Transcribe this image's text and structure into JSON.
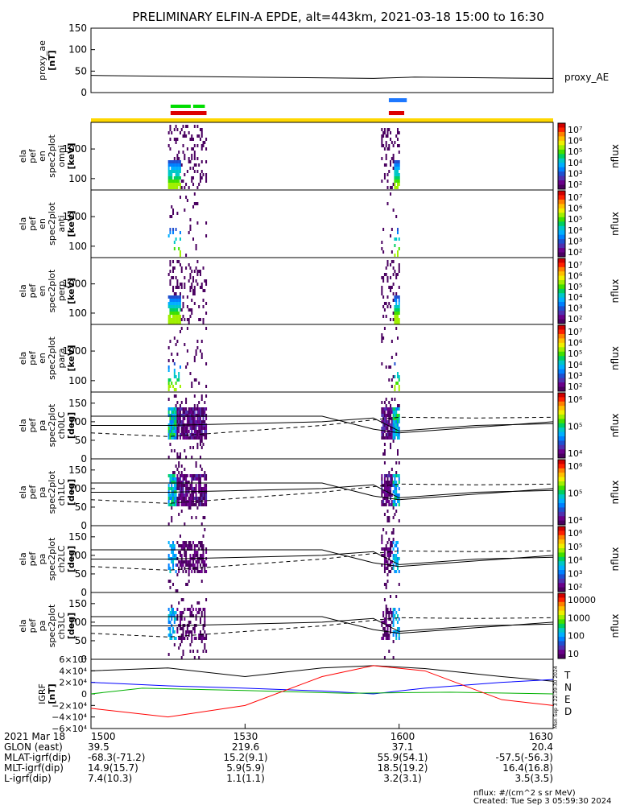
{
  "title": "PRELIMINARY ELFIN-A EPDE, alt=443km, 2021-03-18 15:00 to 16:30",
  "colors": {
    "spectro": [
      "#ffffff",
      "#4a0060",
      "#6a008a",
      "#5030b0",
      "#2050d0",
      "#0080ff",
      "#00b0ff",
      "#00c8c8",
      "#00d060",
      "#40e000",
      "#a0f000",
      "#f0f000",
      "#ffc000",
      "#ff8000",
      "#ff2000",
      "#d00000"
    ],
    "N": "#0000ff",
    "E": "#00b000",
    "D": "#ff0000",
    "T": "#000000",
    "bar_yellow": "#ffd700",
    "bar_red": "#dd0000",
    "bar_green": "#00dd00",
    "bar_blue": "#1e78ff"
  },
  "colorbar_ticks": {
    "en": [
      "10⁷",
      "10⁶",
      "10⁵",
      "10⁴",
      "10³",
      "10²"
    ],
    "lc01": [
      "10⁶",
      "10⁵",
      "10⁴"
    ],
    "lc2": [
      "10⁶",
      "10⁵",
      "10⁴",
      "10³",
      "10²"
    ],
    "lc3": [
      "10000",
      "1000",
      "100",
      "10"
    ],
    "unit": "nflux"
  },
  "sections": {
    "ae_label": "proxy_AE",
    "igrf_letters": [
      "T",
      "N",
      "E",
      "D"
    ],
    "footnote1": "nflux: #/(cm^2 s sr MeV)",
    "footnote2": "Created: Tue Sep  3 05:59:30 2024",
    "stamp": "Mon Sep  3 22:39:30 2024"
  },
  "chart_data": {
    "type": "line",
    "panels": [
      {
        "ylabel": [
          "proxy_ae",
          "[nT]"
        ],
        "ylim": [
          0,
          150
        ],
        "yticks": [
          "150",
          "100",
          "50",
          "0"
        ],
        "series": [
          {
            "name": "proxy_AE",
            "x": [
              "15:00",
              "15:15",
              "15:30",
              "15:40",
              "15:55",
              "16:03",
              "16:20",
              "16:30"
            ],
            "values": [
              40,
              38,
              36,
              35,
              33,
              36,
              34,
              33
            ]
          }
        ]
      },
      {
        "ylabel": [
          "ela",
          "pef",
          "en",
          "spec2plot",
          "omni",
          "[keV]"
        ],
        "ylim": [
          60,
          7000
        ],
        "scale": "log",
        "yticks": [
          "1000",
          "100"
        ],
        "cbar": "en",
        "bursts": [
          {
            "start": "15:12",
            "end": "15:18"
          },
          {
            "start": "15:57",
            "end": "15:59"
          }
        ]
      },
      {
        "ylabel": [
          "ela",
          "pef",
          "en",
          "spec2plot",
          "anti",
          "[keV]"
        ],
        "ylim": [
          60,
          7000
        ],
        "scale": "log",
        "yticks": [
          "1000",
          "100"
        ],
        "cbar": "en"
      },
      {
        "ylabel": [
          "ela",
          "pef",
          "en",
          "spec2plot",
          "perp",
          "[keV]"
        ],
        "ylim": [
          60,
          7000
        ],
        "scale": "log",
        "yticks": [
          "1000",
          "100"
        ],
        "cbar": "en"
      },
      {
        "ylabel": [
          "ela",
          "pef",
          "en",
          "spec2plot",
          "para",
          "[keV]"
        ],
        "ylim": [
          60,
          7000
        ],
        "scale": "log",
        "yticks": [
          "1000",
          "100"
        ],
        "cbar": "en"
      },
      {
        "ylabel": [
          "ela",
          "pef",
          "pa",
          "spec2plot",
          "ch0LC",
          "[deg]"
        ],
        "ylim": [
          0,
          180
        ],
        "yticks": [
          "150",
          "100",
          "50",
          "0"
        ],
        "cbar": "lc01"
      },
      {
        "ylabel": [
          "ela",
          "pef",
          "pa",
          "spec2plot",
          "ch1LC",
          "[deg]"
        ],
        "ylim": [
          0,
          180
        ],
        "yticks": [
          "150",
          "100",
          "50",
          "0"
        ],
        "cbar": "lc01"
      },
      {
        "ylabel": [
          "ela",
          "pef",
          "pa",
          "spec2plot",
          "ch2LC",
          "[deg]"
        ],
        "ylim": [
          0,
          180
        ],
        "yticks": [
          "150",
          "100",
          "50",
          "0"
        ],
        "cbar": "lc2"
      },
      {
        "ylabel": [
          "ela",
          "pef",
          "pa",
          "spec2plot",
          "ch3LC",
          "[deg]"
        ],
        "ylim": [
          0,
          180
        ],
        "yticks": [
          "150",
          "100",
          "50",
          "0"
        ],
        "cbar": "lc3"
      },
      {
        "ylabel": [
          "IGRF",
          "[nT]"
        ],
        "ylim": [
          -60000,
          60000
        ],
        "yticks": [
          "6×10⁴",
          "4×10⁴",
          "2×10⁴",
          "0",
          "−2×10⁴",
          "−4×10⁴",
          "−6×10⁴"
        ],
        "series": [
          {
            "name": "T",
            "x": [
              "15:00",
              "15:15",
              "15:30",
              "15:45",
              "15:55",
              "16:05",
              "16:20",
              "16:30"
            ],
            "values": [
              40000,
              45000,
              30000,
              45000,
              49000,
              44000,
              30000,
              22000
            ]
          },
          {
            "name": "N",
            "x": [
              "15:00",
              "15:15",
              "15:30",
              "15:45",
              "15:55",
              "16:05",
              "16:20",
              "16:30"
            ],
            "values": [
              20000,
              14000,
              10000,
              5000,
              0,
              10000,
              20000,
              25000
            ]
          },
          {
            "name": "E",
            "x": [
              "15:00",
              "15:10",
              "15:30",
              "15:50",
              "16:10",
              "16:30"
            ],
            "values": [
              0,
              10000,
              6000,
              1000,
              3000,
              0
            ]
          },
          {
            "name": "D",
            "x": [
              "15:00",
              "15:15",
              "15:30",
              "15:45",
              "15:55",
              "16:05",
              "16:20",
              "16:30"
            ],
            "values": [
              -25000,
              -40000,
              -20000,
              30000,
              49000,
              40000,
              -10000,
              -20000
            ]
          }
        ]
      }
    ],
    "pa_lines": {
      "solid_a": [
        115,
        115,
        115,
        115,
        80,
        70,
        85,
        100
      ],
      "solid_b": [
        90,
        90,
        95,
        100,
        110,
        75,
        90,
        95
      ],
      "dashed": [
        70,
        60,
        75,
        90,
        105,
        112,
        110,
        112
      ]
    },
    "axis": {
      "rows": [
        {
          "label": "2021 Mar 18",
          "values": [
            "1500",
            "1530",
            "1600",
            "1630"
          ]
        },
        {
          "label": "GLON (east)",
          "values": [
            "39.5",
            "219.6",
            "37.1",
            "20.4"
          ]
        },
        {
          "label": "MLAT-igrf(dip)",
          "values": [
            "-68.3(-71.2)",
            "15.2(9.1)",
            "55.9(54.1)",
            "-57.5(-56.3)"
          ]
        },
        {
          "label": "MLT-igrf(dip)",
          "values": [
            "14.9(15.7)",
            "5.9(5.9)",
            "18.5(19.2)",
            "16.4(16.8)"
          ]
        },
        {
          "label": "L-igrf(dip)",
          "values": [
            "7.4(10.3)",
            "1.1(1.1)",
            "3.2(3.1)",
            "3.5(3.5)"
          ]
        }
      ]
    }
  }
}
